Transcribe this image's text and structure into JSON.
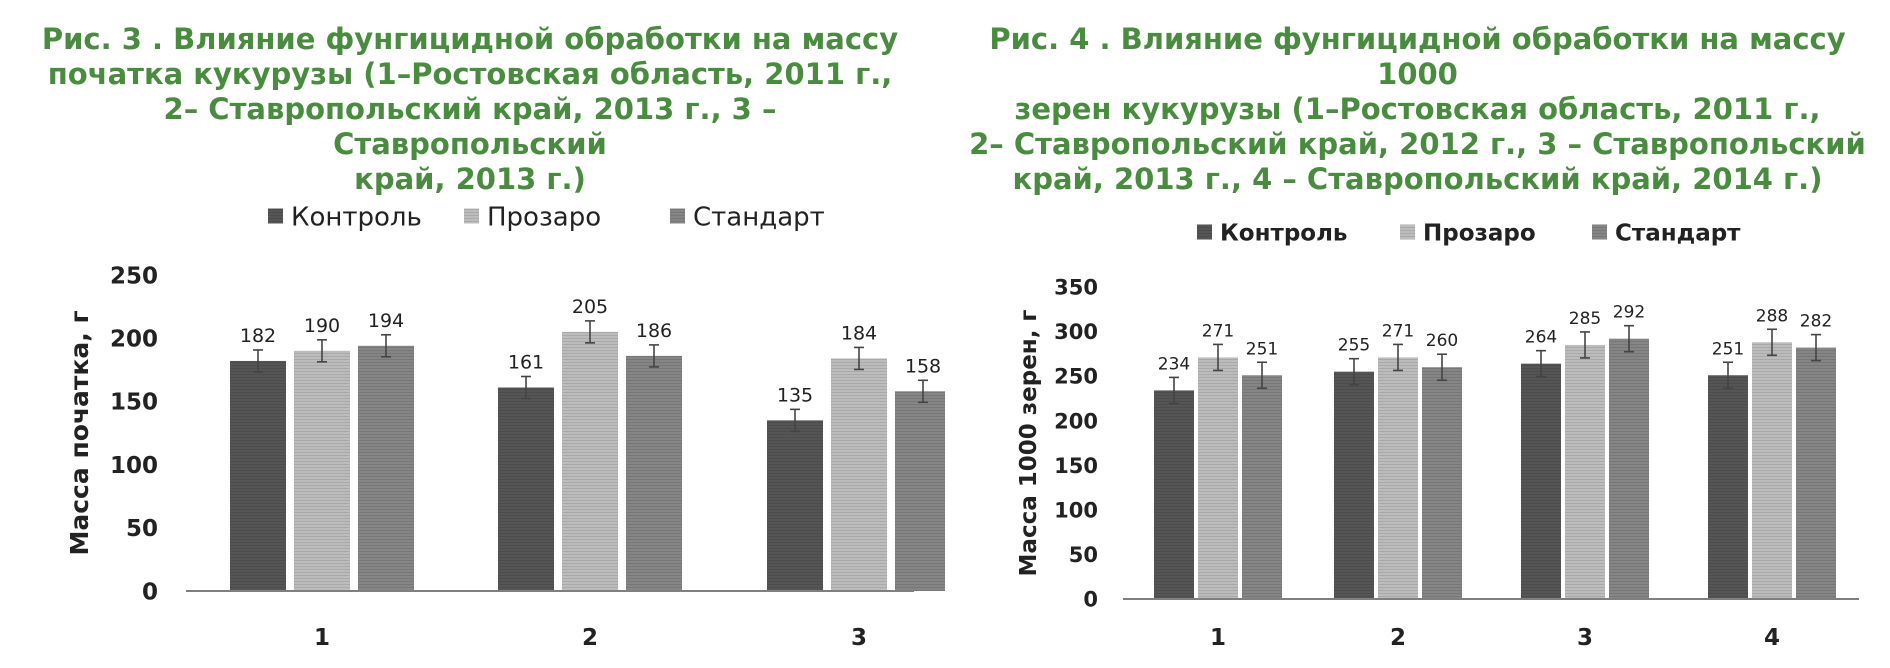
{
  "colors": {
    "caption": "#4a8c3f",
    "control": "#555555",
    "prozaro": "#bcbcbc",
    "standart": "#858585",
    "axis": "#7f7f7f",
    "text": "#222222"
  },
  "figures": [
    {
      "caption": "Рис. 3 . Влияние фунгицидной обработки на массу\nпочатка кукурузы (1–Ростовская область, 2011 г.,\n2– Ставропольский край, 2013 г., 3 – Ставропольский\nкрай, 2013 г.)"
    },
    {
      "caption": "Рис. 4 . Влияние фунгицидной обработки на массу 1000\nзерен кукурузы (1–Ростовская область, 2011 г.,\n2– Ставропольский край, 2012 г., 3 – Ставропольский\nкрай, 2013 г., 4 – Ставропольский край, 2014 г.)"
    }
  ],
  "chart_data": [
    {
      "type": "bar",
      "title": "",
      "xlabel": "",
      "ylabel": "Масса початка, г",
      "categories": [
        "1",
        "2",
        "3"
      ],
      "series": [
        {
          "name": "Контроль",
          "values": [
            182,
            161,
            135
          ]
        },
        {
          "name": "Прозаро",
          "values": [
            190,
            205,
            184
          ]
        },
        {
          "name": "Стандарт",
          "values": [
            194,
            186,
            158
          ]
        }
      ],
      "error_bars": true,
      "ylim": [
        0,
        250
      ],
      "yticks": [
        0,
        50,
        100,
        150,
        200,
        250
      ],
      "grid": false,
      "legend_position": "top"
    },
    {
      "type": "bar",
      "title": "",
      "xlabel": "",
      "ylabel": "Масса 1000 зерен, г",
      "categories": [
        "1",
        "2",
        "3",
        "4"
      ],
      "series": [
        {
          "name": "Контроль",
          "values": [
            234,
            255,
            264,
            251
          ]
        },
        {
          "name": "Прозаро",
          "values": [
            271,
            271,
            285,
            288
          ]
        },
        {
          "name": "Стандарт",
          "values": [
            251,
            260,
            292,
            282
          ]
        }
      ],
      "error_bars": true,
      "ylim": [
        0,
        350
      ],
      "yticks": [
        0,
        50,
        100,
        150,
        200,
        250,
        300,
        350
      ],
      "grid": false,
      "legend_position": "top"
    }
  ]
}
